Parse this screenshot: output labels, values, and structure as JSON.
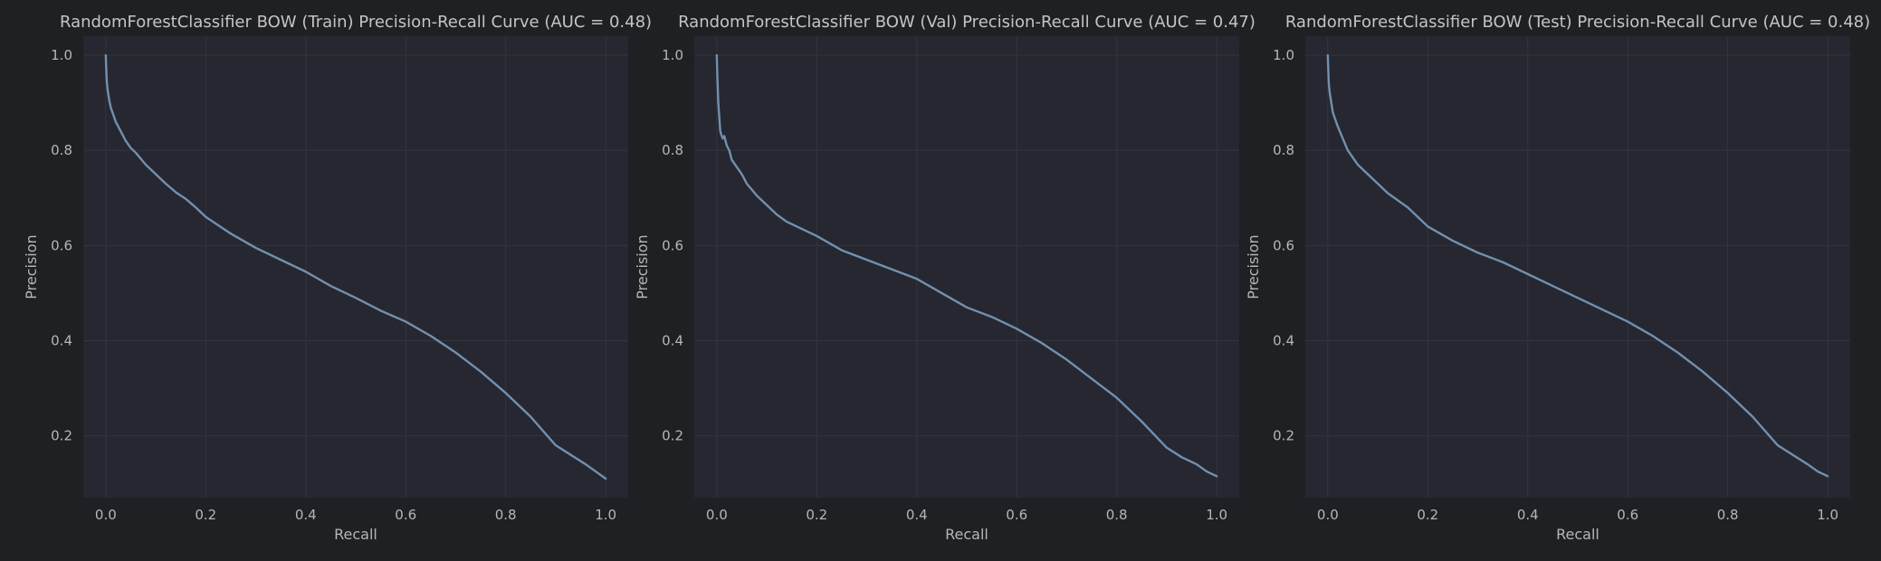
{
  "colors": {
    "figure_bg": "#1f2023",
    "panel_bg": "#262730",
    "grid": "#33343d",
    "curve": "#7290b0",
    "text": "#b6b6b8"
  },
  "chart_data": [
    {
      "type": "line",
      "title": "RandomForestClassifier BOW (Train) Precision-Recall Curve (AUC = 0.48)",
      "xlabel": "Recall",
      "ylabel": "Precision",
      "xlim": [
        -0.045,
        1.045
      ],
      "ylim": [
        0.07,
        1.04
      ],
      "xticks": [
        "0.0",
        "0.2",
        "0.4",
        "0.6",
        "0.8",
        "1.0"
      ],
      "yticks": [
        "0.2",
        "0.4",
        "0.6",
        "0.8",
        "1.0"
      ],
      "grid": true,
      "series": [
        {
          "x": [
            0.0,
            0.001,
            0.002,
            0.004,
            0.007,
            0.01,
            0.015,
            0.02,
            0.03,
            0.04,
            0.05,
            0.06,
            0.08,
            0.1,
            0.12,
            0.14,
            0.16,
            0.18,
            0.2,
            0.25,
            0.3,
            0.35,
            0.4,
            0.45,
            0.5,
            0.55,
            0.6,
            0.65,
            0.7,
            0.75,
            0.8,
            0.85,
            0.9,
            0.93,
            0.96,
            0.98,
            1.0
          ],
          "y": [
            1.0,
            0.97,
            0.945,
            0.925,
            0.905,
            0.89,
            0.875,
            0.86,
            0.84,
            0.82,
            0.805,
            0.795,
            0.77,
            0.75,
            0.73,
            0.712,
            0.698,
            0.68,
            0.66,
            0.625,
            0.595,
            0.57,
            0.545,
            0.515,
            0.49,
            0.463,
            0.44,
            0.41,
            0.375,
            0.335,
            0.29,
            0.24,
            0.18,
            0.16,
            0.14,
            0.125,
            0.11
          ]
        }
      ]
    },
    {
      "type": "line",
      "title": "RandomForestClassifier BOW (Val) Precision-Recall Curve (AUC = 0.47)",
      "xlabel": "Recall",
      "ylabel": "Precision",
      "xlim": [
        -0.045,
        1.045
      ],
      "ylim": [
        0.07,
        1.04
      ],
      "xticks": [
        "0.0",
        "0.2",
        "0.4",
        "0.6",
        "0.8",
        "1.0"
      ],
      "yticks": [
        "0.2",
        "0.4",
        "0.6",
        "0.8",
        "1.0"
      ],
      "grid": true,
      "series": [
        {
          "x": [
            0.0,
            0.001,
            0.002,
            0.003,
            0.005,
            0.007,
            0.01,
            0.012,
            0.015,
            0.02,
            0.025,
            0.03,
            0.04,
            0.05,
            0.06,
            0.08,
            0.1,
            0.12,
            0.14,
            0.16,
            0.18,
            0.2,
            0.25,
            0.3,
            0.35,
            0.4,
            0.45,
            0.5,
            0.55,
            0.6,
            0.65,
            0.7,
            0.75,
            0.8,
            0.85,
            0.9,
            0.93,
            0.96,
            0.98,
            1.0
          ],
          "y": [
            1.0,
            0.96,
            0.93,
            0.9,
            0.87,
            0.84,
            0.83,
            0.825,
            0.83,
            0.81,
            0.8,
            0.78,
            0.765,
            0.75,
            0.73,
            0.705,
            0.685,
            0.665,
            0.65,
            0.64,
            0.63,
            0.62,
            0.59,
            0.57,
            0.55,
            0.53,
            0.5,
            0.47,
            0.45,
            0.425,
            0.395,
            0.36,
            0.32,
            0.28,
            0.23,
            0.175,
            0.155,
            0.14,
            0.125,
            0.115
          ]
        }
      ]
    },
    {
      "type": "line",
      "title": "RandomForestClassifier BOW (Test) Precision-Recall Curve (AUC = 0.48)",
      "xlabel": "Recall",
      "ylabel": "Precision",
      "xlim": [
        -0.045,
        1.045
      ],
      "ylim": [
        0.07,
        1.04
      ],
      "xticks": [
        "0.0",
        "0.2",
        "0.4",
        "0.6",
        "0.8",
        "1.0"
      ],
      "yticks": [
        "0.2",
        "0.4",
        "0.6",
        "0.8",
        "1.0"
      ],
      "grid": true,
      "series": [
        {
          "x": [
            0.0,
            0.001,
            0.002,
            0.004,
            0.007,
            0.01,
            0.015,
            0.02,
            0.03,
            0.04,
            0.05,
            0.06,
            0.08,
            0.1,
            0.12,
            0.14,
            0.16,
            0.18,
            0.2,
            0.25,
            0.3,
            0.35,
            0.4,
            0.45,
            0.5,
            0.55,
            0.6,
            0.65,
            0.7,
            0.75,
            0.8,
            0.85,
            0.9,
            0.93,
            0.96,
            0.98,
            1.0
          ],
          "y": [
            1.0,
            0.97,
            0.94,
            0.92,
            0.9,
            0.88,
            0.865,
            0.85,
            0.825,
            0.8,
            0.785,
            0.77,
            0.75,
            0.73,
            0.71,
            0.695,
            0.68,
            0.66,
            0.64,
            0.61,
            0.585,
            0.565,
            0.54,
            0.515,
            0.49,
            0.465,
            0.44,
            0.41,
            0.375,
            0.335,
            0.29,
            0.24,
            0.18,
            0.16,
            0.14,
            0.125,
            0.115
          ]
        }
      ]
    }
  ]
}
